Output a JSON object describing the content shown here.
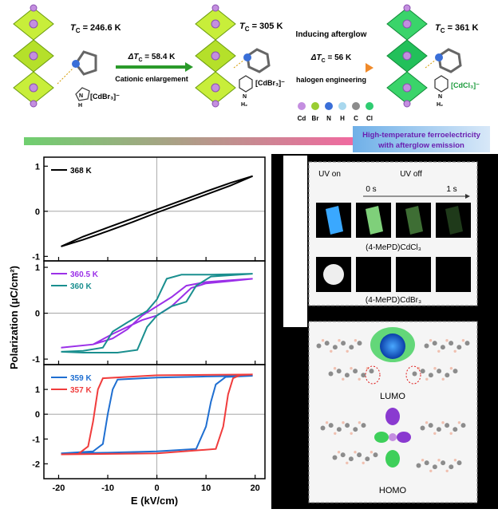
{
  "scheme": {
    "tc_symbol": {
      "main": "T",
      "sub": "C"
    },
    "structures": [
      {
        "tc_value": " = 246.6 K",
        "anion": "[CdBr₃]⁻",
        "n_label": "N",
        "h_label": "H"
      },
      {
        "tc_value": " = 305 K",
        "anion": "[CdBr₃]⁻",
        "n_label": "N",
        "h_label": "H₂"
      },
      {
        "tc_value": " = 361 K",
        "anion": "[CdCl₃]⁻",
        "n_label": "N",
        "h_label": "H₂"
      }
    ],
    "arrow1": {
      "delta_symbol": "ΔT",
      "delta_value": " = 58.4 K",
      "caption": "Cationic enlargement"
    },
    "arrow2": {
      "top": "Inducing afterglow",
      "delta_symbol": "ΔT",
      "delta_value": " = 56 K",
      "caption": "halogen engineering"
    },
    "elements": [
      {
        "label": "Cd",
        "color": "#c48ee0"
      },
      {
        "label": "Br",
        "color": "#9acd32"
      },
      {
        "label": "N",
        "color": "#3a6fd8"
      },
      {
        "label": "H",
        "color": "#a9d8ee"
      },
      {
        "label": "C",
        "color": "#8c8c8c"
      },
      {
        "label": "Cl",
        "color": "#2ecc71"
      }
    ],
    "banner": [
      "High-temperature ferroelectricity",
      "with afterglow emission"
    ]
  },
  "photo_panel": {
    "uv_on": "UV on",
    "uv_off": "UV off",
    "t0": "0 s",
    "t1": "1 s",
    "row1": "(4-MePD)CdCl₃",
    "row2": "(4-MePD)CdBr₃"
  },
  "orbital_panel": {
    "lumo": "LUMO",
    "homo": "HOMO"
  },
  "chart_data": [
    {
      "type": "line",
      "xlim": [
        -23,
        22
      ],
      "ylim": [
        -1.1,
        1.2
      ],
      "yticks": [
        -1,
        0,
        1
      ],
      "series": [
        {
          "name": "368 K",
          "color": "#000000",
          "x": [
            -19.5,
            -15,
            -10,
            -5,
            0,
            5,
            10,
            15,
            19.5,
            15,
            10,
            5,
            0,
            -5,
            -10,
            -15,
            -19.5
          ],
          "values": [
            -0.78,
            -0.63,
            -0.44,
            -0.24,
            -0.03,
            0.17,
            0.37,
            0.57,
            0.78,
            0.63,
            0.44,
            0.24,
            0.04,
            -0.16,
            -0.36,
            -0.56,
            -0.78
          ]
        }
      ]
    },
    {
      "type": "line",
      "xlim": [
        -23,
        22
      ],
      "ylim": [
        -1.12,
        1.14
      ],
      "yticks": [
        -1,
        0,
        1
      ],
      "ylabel": "Polarization (μC/cm²)",
      "series": [
        {
          "name": "360.5 K",
          "color": "#9b30e8",
          "x": [
            -19.5,
            -13,
            -9,
            -6,
            -3,
            0,
            3,
            5,
            7,
            10,
            15,
            19.5,
            15,
            10,
            6,
            3,
            0,
            -3,
            -6,
            -9,
            -13,
            -19.5
          ],
          "values": [
            -0.75,
            -0.68,
            -0.45,
            -0.3,
            -0.15,
            -0.05,
            0.15,
            0.35,
            0.55,
            0.65,
            0.7,
            0.75,
            0.72,
            0.68,
            0.6,
            0.35,
            0.15,
            -0.05,
            -0.35,
            -0.55,
            -0.68,
            -0.75
          ]
        },
        {
          "name": "360 K",
          "color": "#1a8f8f",
          "x": [
            -19.5,
            -15,
            -8,
            -4,
            -2,
            0,
            3,
            6,
            8,
            11,
            19.5,
            11,
            5,
            2,
            0,
            -2,
            -6,
            -9,
            -11,
            -15,
            -19.5
          ],
          "values": [
            -0.84,
            -0.86,
            -0.86,
            -0.8,
            -0.3,
            -0.05,
            0.15,
            0.25,
            0.6,
            0.8,
            0.86,
            0.84,
            0.84,
            0.75,
            0.3,
            0.05,
            -0.2,
            -0.4,
            -0.75,
            -0.82,
            -0.84
          ]
        }
      ]
    },
    {
      "type": "line",
      "xlim": [
        -23,
        22
      ],
      "ylim": [
        -2.6,
        2.0
      ],
      "yticks": [
        -2,
        -1,
        0,
        1
      ],
      "xticks": [
        -20,
        -10,
        0,
        10,
        20
      ],
      "xlabel": "E (kV/cm)",
      "series": [
        {
          "name": "359 K",
          "color": "#1f6fd1",
          "x": [
            19.5,
            10,
            0,
            -8,
            -9,
            -10,
            -11,
            -13,
            -19.5,
            -10,
            0,
            8,
            10,
            11,
            12,
            14,
            19.5
          ],
          "values": [
            1.55,
            1.52,
            1.48,
            1.4,
            1.0,
            0.0,
            -1.2,
            -1.5,
            -1.58,
            -1.55,
            -1.5,
            -1.4,
            -0.5,
            0.5,
            1.2,
            1.5,
            1.55
          ]
        },
        {
          "name": "357 K",
          "color": "#f03c3c",
          "x": [
            19.5,
            0,
            -11,
            -12,
            -13,
            -14,
            -16,
            -19.5,
            0,
            12,
            13.5,
            14.5,
            15.5,
            17,
            19.5
          ],
          "values": [
            1.6,
            1.57,
            1.45,
            1.0,
            -0.3,
            -1.3,
            -1.6,
            -1.62,
            -1.58,
            -1.4,
            -0.5,
            0.8,
            1.45,
            1.58,
            1.6
          ]
        }
      ]
    }
  ]
}
